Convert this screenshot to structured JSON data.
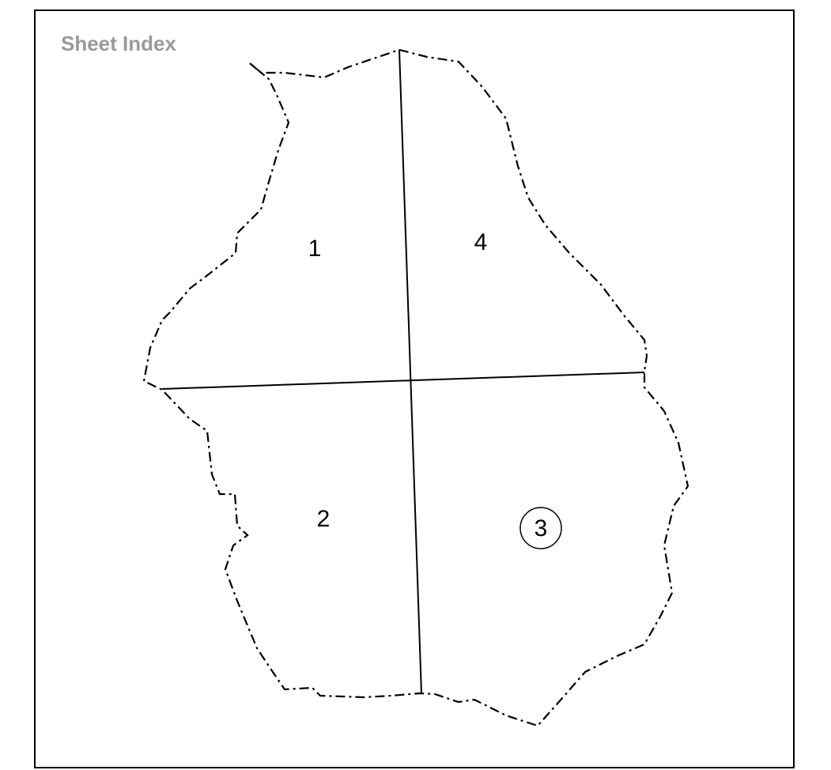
{
  "title": "Sheet Index",
  "sheets": [
    {
      "label": "1"
    },
    {
      "label": "4"
    },
    {
      "label": "2"
    },
    {
      "label": "3"
    }
  ]
}
